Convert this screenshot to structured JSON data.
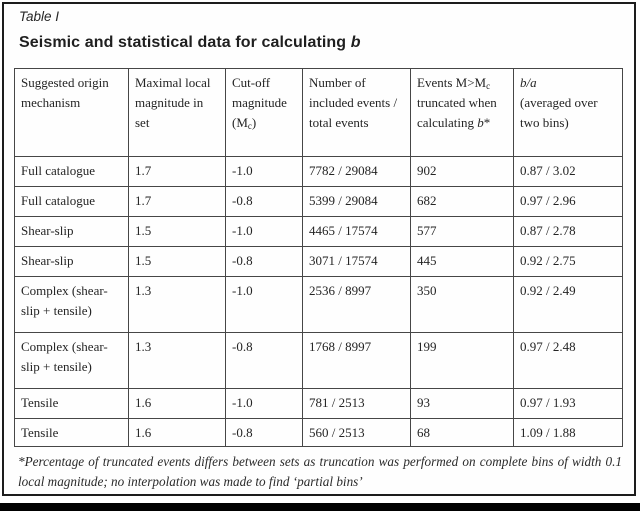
{
  "figure": {
    "label": "Table I",
    "title": "Seismic and statistical data for calculating",
    "title_var": "b"
  },
  "table": {
    "headers": {
      "mechanism": "Suggested origin mechanism",
      "max_mag": "Maximal local magnitude in set",
      "cutoff_pre": "Cut-off magnitude (M",
      "cutoff_sub": "c",
      "cutoff_post": ")",
      "events": "Number of included events / total events",
      "trunc_pre": "Events M>M",
      "trunc_sub": "c",
      "trunc_mid": "truncated when calculating",
      "trunc_var": "b",
      "trunc_star": "*",
      "ba_var": "b/a",
      "ba_rest": "(averaged over two bins)"
    },
    "rows": [
      [
        "Full catalogue",
        "1.7",
        "-1.0",
        "7782 / 29084",
        "902",
        "0.87 / 3.02"
      ],
      [
        "Full catalogue",
        "1.7",
        "-0.8",
        "5399 / 29084",
        "682",
        "0.97 / 2.96"
      ],
      [
        "Shear-slip",
        "1.5",
        "-1.0",
        "4465 / 17574",
        "577",
        "0.87 / 2.78"
      ],
      [
        "Shear-slip",
        "1.5",
        "-0.8",
        "3071 / 17574",
        "445",
        "0.92 / 2.75"
      ],
      [
        "Complex (shear-slip + tensile)",
        "1.3",
        "-1.0",
        "2536 / 8997",
        "350",
        "0.92 / 2.49"
      ],
      [
        "Complex (shear-slip + tensile)",
        "1.3",
        "-0.8",
        "1768 / 8997",
        "199",
        "0.97 / 2.48"
      ],
      [
        "Tensile",
        "1.6",
        "-1.0",
        "781 / 2513",
        "93",
        "0.97 / 1.93"
      ],
      [
        "Tensile",
        "1.6",
        "-0.8",
        "560 / 2513",
        "68",
        "1.09 / 1.88"
      ]
    ]
  },
  "footnote": "*Percentage of truncated events differs between sets as truncation was performed on complete bins of width 0.1 local magnitude; no interpolation was made to find ‘partial bins’"
}
